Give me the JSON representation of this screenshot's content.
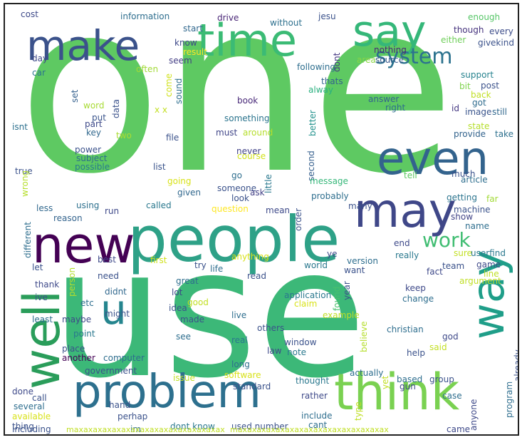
{
  "words": [
    {
      "id": "one",
      "text": "one",
      "color": "#5ec962"
    },
    {
      "id": "use",
      "text": "use",
      "color": "#3cb878"
    },
    {
      "id": "people",
      "text": "people",
      "color": "#2ea187"
    },
    {
      "id": "problem",
      "text": "problem",
      "color": "#2d708e"
    },
    {
      "id": "think",
      "text": "think",
      "color": "#7ad151"
    },
    {
      "id": "time",
      "text": "time",
      "color": "#3bbb75"
    },
    {
      "id": "say",
      "text": "say",
      "color": "#35b779"
    },
    {
      "id": "make",
      "text": "make",
      "color": "#3b528b"
    },
    {
      "id": "even",
      "text": "even",
      "color": "#33638d"
    },
    {
      "id": "new",
      "text": "new",
      "color": "#440154"
    },
    {
      "id": "may",
      "text": "may",
      "color": "#3f4788"
    },
    {
      "id": "well",
      "text": "well",
      "color": "#2a9d5a"
    },
    {
      "id": "way",
      "text": "way",
      "color": "#1f9e89"
    },
    {
      "id": "u",
      "text": "u",
      "color": "#25858e"
    },
    {
      "id": "system",
      "text": "system",
      "color": "#2c728e"
    },
    {
      "id": "work",
      "text": "work",
      "color": "#40bd72"
    },
    {
      "id": "cost",
      "text": "cost",
      "color": "#3e4a89"
    },
    {
      "id": "information",
      "text": "information",
      "color": "#2e6e8e"
    },
    {
      "id": "drive",
      "text": "drive",
      "color": "#482576"
    },
    {
      "id": "without",
      "text": "without",
      "color": "#2d708e"
    },
    {
      "id": "jesu",
      "text": "jesu",
      "color": "#3b528b"
    },
    {
      "id": "enough",
      "text": "enough",
      "color": "#56c667"
    },
    {
      "id": "though",
      "text": "though",
      "color": "#46337e"
    },
    {
      "id": "every",
      "text": "every",
      "color": "#3d4d8a"
    },
    {
      "id": "either",
      "text": "either",
      "color": "#6ece58"
    },
    {
      "id": "givekind",
      "text": "givekind",
      "color": "#3b528b"
    },
    {
      "id": "start",
      "text": "start",
      "color": "#31688e"
    },
    {
      "id": "know",
      "text": "know",
      "color": "#3e4989"
    },
    {
      "id": "result",
      "text": "result",
      "color": "#fde725"
    },
    {
      "id": "seem",
      "text": "seem",
      "color": "#433e85"
    },
    {
      "id": "day",
      "text": "day",
      "color": "#3e4a89"
    },
    {
      "id": "car",
      "text": "car",
      "color": "#2b748e"
    },
    {
      "id": "often",
      "text": "often",
      "color": "#a2da37"
    },
    {
      "id": "nothing",
      "text": "nothing",
      "color": "#482475"
    },
    {
      "id": "source",
      "text": "source",
      "color": "#38598c"
    },
    {
      "id": "area",
      "text": "area",
      "color": "#8bd646"
    },
    {
      "id": "dont",
      "text": "dont",
      "color": "#453882"
    },
    {
      "id": "following",
      "text": "following",
      "color": "#2e6e8e"
    },
    {
      "id": "thats",
      "text": "thats",
      "color": "#33638d"
    },
    {
      "id": "alway",
      "text": "alway",
      "color": "#2ab07f"
    },
    {
      "id": "support",
      "text": "support",
      "color": "#26828e"
    },
    {
      "id": "bit",
      "text": "bit",
      "color": "#7fd34e"
    },
    {
      "id": "post",
      "text": "post",
      "color": "#3b528b"
    },
    {
      "id": "back",
      "text": "back",
      "color": "#c0df25"
    },
    {
      "id": "got",
      "text": "got",
      "color": "#2f6b8e"
    },
    {
      "id": "id",
      "text": "id",
      "color": "#453882"
    },
    {
      "id": "image",
      "text": "image",
      "color": "#3a548c"
    },
    {
      "id": "still",
      "text": "still",
      "color": "#31688e"
    },
    {
      "id": "state",
      "text": "state",
      "color": "#b5de2b"
    },
    {
      "id": "provide",
      "text": "provide",
      "color": "#33638d"
    },
    {
      "id": "take",
      "text": "take",
      "color": "#2d708e"
    },
    {
      "id": "come",
      "text": "come",
      "color": "#d0e11c"
    },
    {
      "id": "sound",
      "text": "sound",
      "color": "#2e6f8e"
    },
    {
      "id": "set",
      "text": "set",
      "color": "#34608d"
    },
    {
      "id": "word",
      "text": "word",
      "color": "#a8db34"
    },
    {
      "id": "data",
      "text": "data",
      "color": "#3b528b"
    },
    {
      "id": "xx",
      "text": "x x",
      "color": "#c2df23"
    },
    {
      "id": "book",
      "text": "book",
      "color": "#482878"
    },
    {
      "id": "answer",
      "text": "answer",
      "color": "#33638d"
    },
    {
      "id": "right",
      "text": "right",
      "color": "#2e6e8e"
    },
    {
      "id": "better",
      "text": "better",
      "color": "#21918c"
    },
    {
      "id": "isnt",
      "text": "isnt",
      "color": "#2d708e"
    },
    {
      "id": "part",
      "text": "part",
      "color": "#3e4989"
    },
    {
      "id": "put",
      "text": "put",
      "color": "#3a548c"
    },
    {
      "id": "key",
      "text": "key",
      "color": "#31688e"
    },
    {
      "id": "two",
      "text": "two",
      "color": "#aadc32"
    },
    {
      "id": "file",
      "text": "file",
      "color": "#3b528b"
    },
    {
      "id": "something",
      "text": "something",
      "color": "#2b748e"
    },
    {
      "id": "must",
      "text": "must",
      "color": "#404588"
    },
    {
      "id": "around",
      "text": "around",
      "color": "#b5de2b"
    },
    {
      "id": "second",
      "text": "second",
      "color": "#355f8d"
    },
    {
      "id": "power",
      "text": "power",
      "color": "#3b528b"
    },
    {
      "id": "subject",
      "text": "subject",
      "color": "#2e6e8e"
    },
    {
      "id": "possible",
      "text": "possible",
      "color": "#287c8e"
    },
    {
      "id": "list",
      "text": "list",
      "color": "#3a548c"
    },
    {
      "id": "never",
      "text": "never",
      "color": "#414287"
    },
    {
      "id": "course",
      "text": "course",
      "color": "#d2e21b"
    },
    {
      "id": "true",
      "text": "true",
      "color": "#3b528b"
    },
    {
      "id": "wrong",
      "text": "wrong",
      "color": "#b5de2b"
    },
    {
      "id": "going",
      "text": "going",
      "color": "#d8e219"
    },
    {
      "id": "given",
      "text": "given",
      "color": "#31688e"
    },
    {
      "id": "go",
      "text": "go",
      "color": "#2e6e8e"
    },
    {
      "id": "someone",
      "text": "someone",
      "color": "#3b528b"
    },
    {
      "id": "ask",
      "text": "ask",
      "color": "#424086"
    },
    {
      "id": "little",
      "text": "little",
      "color": "#2a788e"
    },
    {
      "id": "message",
      "text": "message",
      "color": "#35b779"
    },
    {
      "id": "tell",
      "text": "tell",
      "color": "#5ec962"
    },
    {
      "id": "much",
      "text": "much",
      "color": "#3b528b"
    },
    {
      "id": "article",
      "text": "article",
      "color": "#2e6e8e"
    },
    {
      "id": "less",
      "text": "less",
      "color": "#31688e"
    },
    {
      "id": "using",
      "text": "using",
      "color": "#2d708e"
    },
    {
      "id": "run",
      "text": "run",
      "color": "#3e4989"
    },
    {
      "id": "called",
      "text": "called",
      "color": "#2a788e"
    },
    {
      "id": "look",
      "text": "look",
      "color": "#3b528b"
    },
    {
      "id": "probably",
      "text": "probably",
      "color": "#2e6e8e"
    },
    {
      "id": "getting",
      "text": "getting",
      "color": "#2b748e"
    },
    {
      "id": "far",
      "text": "far",
      "color": "#a2da37"
    },
    {
      "id": "machine",
      "text": "machine",
      "color": "#3b528b"
    },
    {
      "id": "reason",
      "text": "reason",
      "color": "#33638d"
    },
    {
      "id": "question",
      "text": "question",
      "color": "#fde725"
    },
    {
      "id": "mean",
      "text": "mean",
      "color": "#3e4a89"
    },
    {
      "id": "many",
      "text": "many",
      "color": "#3b528b"
    },
    {
      "id": "show",
      "text": "show",
      "color": "#414487"
    },
    {
      "id": "different",
      "text": "different",
      "color": "#2e6e8e"
    },
    {
      "id": "order",
      "text": "order",
      "color": "#3b528b"
    },
    {
      "id": "name",
      "text": "name",
      "color": "#2e6e8e"
    },
    {
      "id": "end",
      "text": "end",
      "color": "#3e4989"
    },
    {
      "id": "sure",
      "text": "sure",
      "color": "#c2df23"
    },
    {
      "id": "userfind",
      "text": "userfind",
      "color": "#2a788e"
    },
    {
      "id": "let",
      "text": "let",
      "color": "#3b528b"
    },
    {
      "id": "best",
      "text": "best",
      "color": "#3e4989"
    },
    {
      "id": "first",
      "text": "first",
      "color": "#d0e11c"
    },
    {
      "id": "try",
      "text": "try",
      "color": "#3b528b"
    },
    {
      "id": "anything",
      "text": "anything",
      "color": "#d8e219"
    },
    {
      "id": "ye",
      "text": "ye",
      "color": "#3e4989"
    },
    {
      "id": "version",
      "text": "version",
      "color": "#2e6e8e"
    },
    {
      "id": "really",
      "text": "really",
      "color": "#2a788e"
    },
    {
      "id": "team",
      "text": "team",
      "color": "#3b528b"
    },
    {
      "id": "game",
      "text": "game",
      "color": "#3e4989"
    },
    {
      "id": "line",
      "text": "line",
      "color": "#c0df25"
    },
    {
      "id": "person",
      "text": "person",
      "color": "#b5de2b"
    },
    {
      "id": "life",
      "text": "life",
      "color": "#2e6e8e"
    },
    {
      "id": "world",
      "text": "world",
      "color": "#2a788e"
    },
    {
      "id": "want",
      "text": "want",
      "color": "#3b528b"
    },
    {
      "id": "fact",
      "text": "fact",
      "color": "#3e4989"
    },
    {
      "id": "argument",
      "text": "argument",
      "color": "#c0df25"
    },
    {
      "id": "need",
      "text": "need",
      "color": "#3b528b"
    },
    {
      "id": "thank",
      "text": "thank",
      "color": "#3e4989"
    },
    {
      "id": "didnt",
      "text": "didnt",
      "color": "#31688e"
    },
    {
      "id": "great",
      "text": "great",
      "color": "#2e6e8e"
    },
    {
      "id": "read",
      "text": "read",
      "color": "#3b528b"
    },
    {
      "id": "found",
      "text": "found",
      "color": "#4ac16d"
    },
    {
      "id": "keep",
      "text": "keep",
      "color": "#3e4989"
    },
    {
      "id": "ive",
      "text": "ive",
      "color": "#3b528b"
    },
    {
      "id": "etc",
      "text": "etc",
      "color": "#2e6e8e"
    },
    {
      "id": "lot",
      "text": "lot",
      "color": "#3e4989"
    },
    {
      "id": "application",
      "text": "application",
      "color": "#2a788e"
    },
    {
      "id": "year",
      "text": "year",
      "color": "#3b528b"
    },
    {
      "id": "change",
      "text": "change",
      "color": "#2e6e8e"
    },
    {
      "id": "good",
      "text": "good",
      "color": "#c2df23"
    },
    {
      "id": "claim",
      "text": "claim",
      "color": "#d8e219"
    },
    {
      "id": "idea",
      "text": "idea",
      "color": "#3b528b"
    },
    {
      "id": "least",
      "text": "least",
      "color": "#2e6e8e"
    },
    {
      "id": "maybe",
      "text": "maybe",
      "color": "#3e4989"
    },
    {
      "id": "made",
      "text": "made",
      "color": "#3b528b"
    },
    {
      "id": "live",
      "text": "live",
      "color": "#2e6e8e"
    },
    {
      "id": "example",
      "text": "example",
      "color": "#c0df25"
    },
    {
      "id": "might",
      "text": "might",
      "color": "#3b528b"
    },
    {
      "id": "point",
      "text": "point",
      "color": "#2a788e"
    },
    {
      "id": "christian",
      "text": "christian",
      "color": "#2e6e8e"
    },
    {
      "id": "god",
      "text": "god",
      "color": "#3e4989"
    },
    {
      "id": "others",
      "text": "others",
      "color": "#3b528b"
    },
    {
      "id": "see",
      "text": "see",
      "color": "#2e6e8e"
    },
    {
      "id": "real",
      "text": "real",
      "color": "#2a788e"
    },
    {
      "id": "window",
      "text": "window",
      "color": "#3b528b"
    },
    {
      "id": "believe",
      "text": "believe",
      "color": "#b5de2b"
    },
    {
      "id": "said",
      "text": "said",
      "color": "#c2df23"
    },
    {
      "id": "place",
      "text": "place",
      "color": "#3b528b"
    },
    {
      "id": "another",
      "text": "another",
      "color": "#440154"
    },
    {
      "id": "computer",
      "text": "computer",
      "color": "#2e6e8e"
    },
    {
      "id": "law",
      "text": "law",
      "color": "#3e4989"
    },
    {
      "id": "note",
      "text": "note",
      "color": "#2a788e"
    },
    {
      "id": "help",
      "text": "help",
      "color": "#3b528b"
    },
    {
      "id": "long",
      "text": "long",
      "color": "#2e6e8e"
    },
    {
      "id": "government",
      "text": "government",
      "color": "#3b528b"
    },
    {
      "id": "issue",
      "text": "issue",
      "color": "#c0df25"
    },
    {
      "id": "software",
      "text": "software",
      "color": "#d8e219"
    },
    {
      "id": "actually",
      "text": "actually",
      "color": "#2e6e8e"
    },
    {
      "id": "already",
      "text": "already",
      "color": "#3b528b"
    },
    {
      "id": "done",
      "text": "done",
      "color": "#3e4989"
    },
    {
      "id": "based",
      "text": "based",
      "color": "#2e6e8e"
    },
    {
      "id": "group",
      "text": "group",
      "color": "#3b528b"
    },
    {
      "id": "thought",
      "text": "thought",
      "color": "#2a788e"
    },
    {
      "id": "standard",
      "text": "standard",
      "color": "#3b528b"
    },
    {
      "id": "yet",
      "text": "yet",
      "color": "#c2df23"
    },
    {
      "id": "gun",
      "text": "gun",
      "color": "#3e4989"
    },
    {
      "id": "program",
      "text": "program",
      "color": "#2e6e8e"
    },
    {
      "id": "call",
      "text": "call",
      "color": "#3b528b"
    },
    {
      "id": "rather",
      "text": "rather",
      "color": "#3e4989"
    },
    {
      "id": "case",
      "text": "case",
      "color": "#2e6e8e"
    },
    {
      "id": "hand",
      "text": "hand",
      "color": "#3b528b"
    },
    {
      "id": "several",
      "text": "several",
      "color": "#2e6e8e"
    },
    {
      "id": "type",
      "text": "type",
      "color": "#c0df25"
    },
    {
      "id": "available",
      "text": "available",
      "color": "#d8e219"
    },
    {
      "id": "perhap",
      "text": "perhap",
      "color": "#3b528b"
    },
    {
      "id": "include",
      "text": "include",
      "color": "#2e6e8e"
    },
    {
      "id": "anyone",
      "text": "anyone",
      "color": "#3e4989"
    },
    {
      "id": "thing",
      "text": "thing",
      "color": "#3b528b"
    },
    {
      "id": "im",
      "text": "im",
      "color": "#2e6e8e"
    },
    {
      "id": "dont_know",
      "text": "dont know",
      "color": "#2a788e"
    },
    {
      "id": "used_number",
      "text": "used number",
      "color": "#3b528b"
    },
    {
      "id": "cant",
      "text": "cant",
      "color": "#2e6e8e"
    },
    {
      "id": "including",
      "text": "including",
      "color": "#3b528b"
    },
    {
      "id": "came",
      "text": "came",
      "color": "#3e4989"
    },
    {
      "id": "max1",
      "text": "maxaxaxaxaxaxaxaxaxaxaxaxaxaxaxax",
      "color": "#c0df25"
    },
    {
      "id": "max2",
      "text": "maxaxaxaxaxaxaxaxaxaxaxaxaxaxaxax",
      "color": "#c0df25"
    }
  ]
}
